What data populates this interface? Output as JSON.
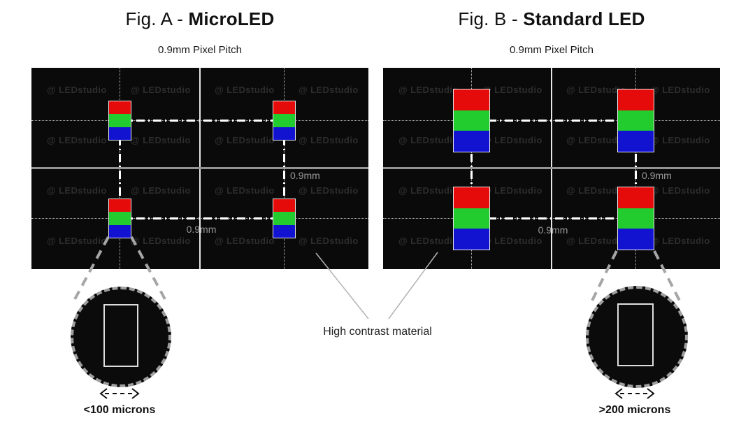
{
  "figures": [
    {
      "title_prefix": "Fig. A - ",
      "title_bold": "MicroLED",
      "subtitle": "0.9mm Pixel Pitch",
      "pitch_v_label": "0.9mm",
      "pitch_h_label": "0.9mm",
      "magnifier_label": "<100 microns"
    },
    {
      "title_prefix": "Fig. B - ",
      "title_bold": "Standard LED",
      "subtitle": "0.9mm Pixel Pitch",
      "pitch_v_label": "0.9mm",
      "pitch_h_label": "0.9mm",
      "magnifier_label": ">200 microns"
    }
  ],
  "watermark": "@ LEDstudio",
  "annotation": "High contrast material",
  "colors": {
    "red": "#e60b0b",
    "green": "#22cc2e",
    "blue": "#1212d1",
    "panel_black": "#0a0a0a",
    "watermark_gray": "#2d2d2d",
    "dash_white": "#ffffff",
    "leader_gray": "#a6a6a6"
  }
}
